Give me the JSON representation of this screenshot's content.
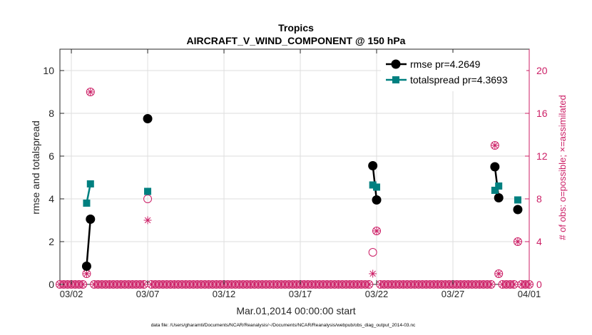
{
  "chart_data": {
    "type": "line",
    "title": "Tropics",
    "subtitle": "AIRCRAFT_V_WIND_COMPONENT @ 150 hPa",
    "xlabel": "Mar.01,2014 00:00:00 start",
    "ylabel": "rmse and totalspread",
    "y2label": "# of obs: o=possible; ×=assimilated",
    "footnote": "data file: /Users/gharamti/Documents/NCAR/Reanalysis/~/Documents/NCAR/Reanalysis/webpub/obs_diag_output_2014-03.nc",
    "xlim": [
      1.25,
      32.0
    ],
    "ylim": [
      0,
      11
    ],
    "y2lim": [
      0,
      22
    ],
    "xticks": [
      {
        "v": 2,
        "label": "03/02"
      },
      {
        "v": 7,
        "label": "03/07"
      },
      {
        "v": 12,
        "label": "03/12"
      },
      {
        "v": 17,
        "label": "03/17"
      },
      {
        "v": 22,
        "label": "03/22"
      },
      {
        "v": 27,
        "label": "03/27"
      },
      {
        "v": 32,
        "label": "04/01"
      }
    ],
    "yticks": [
      {
        "v": 0,
        "label": "0"
      },
      {
        "v": 2,
        "label": "2"
      },
      {
        "v": 4,
        "label": "4"
      },
      {
        "v": 6,
        "label": "6"
      },
      {
        "v": 8,
        "label": "8"
      },
      {
        "v": 10,
        "label": "10"
      }
    ],
    "y2ticks": [
      {
        "v": 0,
        "label": "0"
      },
      {
        "v": 4,
        "label": "4"
      },
      {
        "v": 8,
        "label": "8"
      },
      {
        "v": 12,
        "label": "12"
      },
      {
        "v": 16,
        "label": "16"
      },
      {
        "v": 20,
        "label": "20"
      }
    ],
    "grid": true,
    "legend_position": "top-right",
    "colors": {
      "rmse": "#000000",
      "totalspread": "#008080",
      "obs": "#cc1f66"
    },
    "series": [
      {
        "name": "rmse pr=4.2649",
        "key": "rmse",
        "marker": "circle",
        "segments": [
          [
            [
              3.0,
              0.85
            ],
            [
              3.25,
              3.05
            ]
          ],
          [
            [
              7.0,
              7.75
            ]
          ],
          [
            [
              21.75,
              5.55
            ],
            [
              22.0,
              3.95
            ]
          ],
          [
            [
              29.75,
              5.5
            ],
            [
              30.0,
              4.05
            ]
          ],
          [
            [
              31.25,
              3.5
            ]
          ]
        ]
      },
      {
        "name": "totalspread pr=4.3693",
        "key": "totalspread",
        "marker": "square",
        "segments": [
          [
            [
              3.0,
              3.8
            ],
            [
              3.25,
              4.7
            ]
          ],
          [
            [
              7.0,
              4.35
            ]
          ],
          [
            [
              21.75,
              4.65
            ],
            [
              22.0,
              4.55
            ]
          ],
          [
            [
              29.75,
              4.4
            ],
            [
              30.0,
              4.6
            ]
          ],
          [
            [
              31.25,
              3.95
            ]
          ]
        ]
      }
    ],
    "obs_possible": {
      "nonzero": [
        [
          3.0,
          1
        ],
        [
          3.25,
          18
        ],
        [
          7.0,
          8
        ],
        [
          21.75,
          3
        ],
        [
          22.0,
          5
        ],
        [
          29.75,
          13
        ],
        [
          30.0,
          1
        ],
        [
          31.25,
          4
        ]
      ],
      "zero_range": [
        1.25,
        32.0
      ],
      "step": 0.25
    },
    "obs_assimilated": {
      "nonzero": [
        [
          3.0,
          1
        ],
        [
          3.25,
          18
        ],
        [
          7.0,
          6
        ],
        [
          21.75,
          1
        ],
        [
          22.0,
          5
        ],
        [
          29.75,
          13
        ],
        [
          30.0,
          1
        ],
        [
          31.25,
          4
        ]
      ]
    }
  }
}
